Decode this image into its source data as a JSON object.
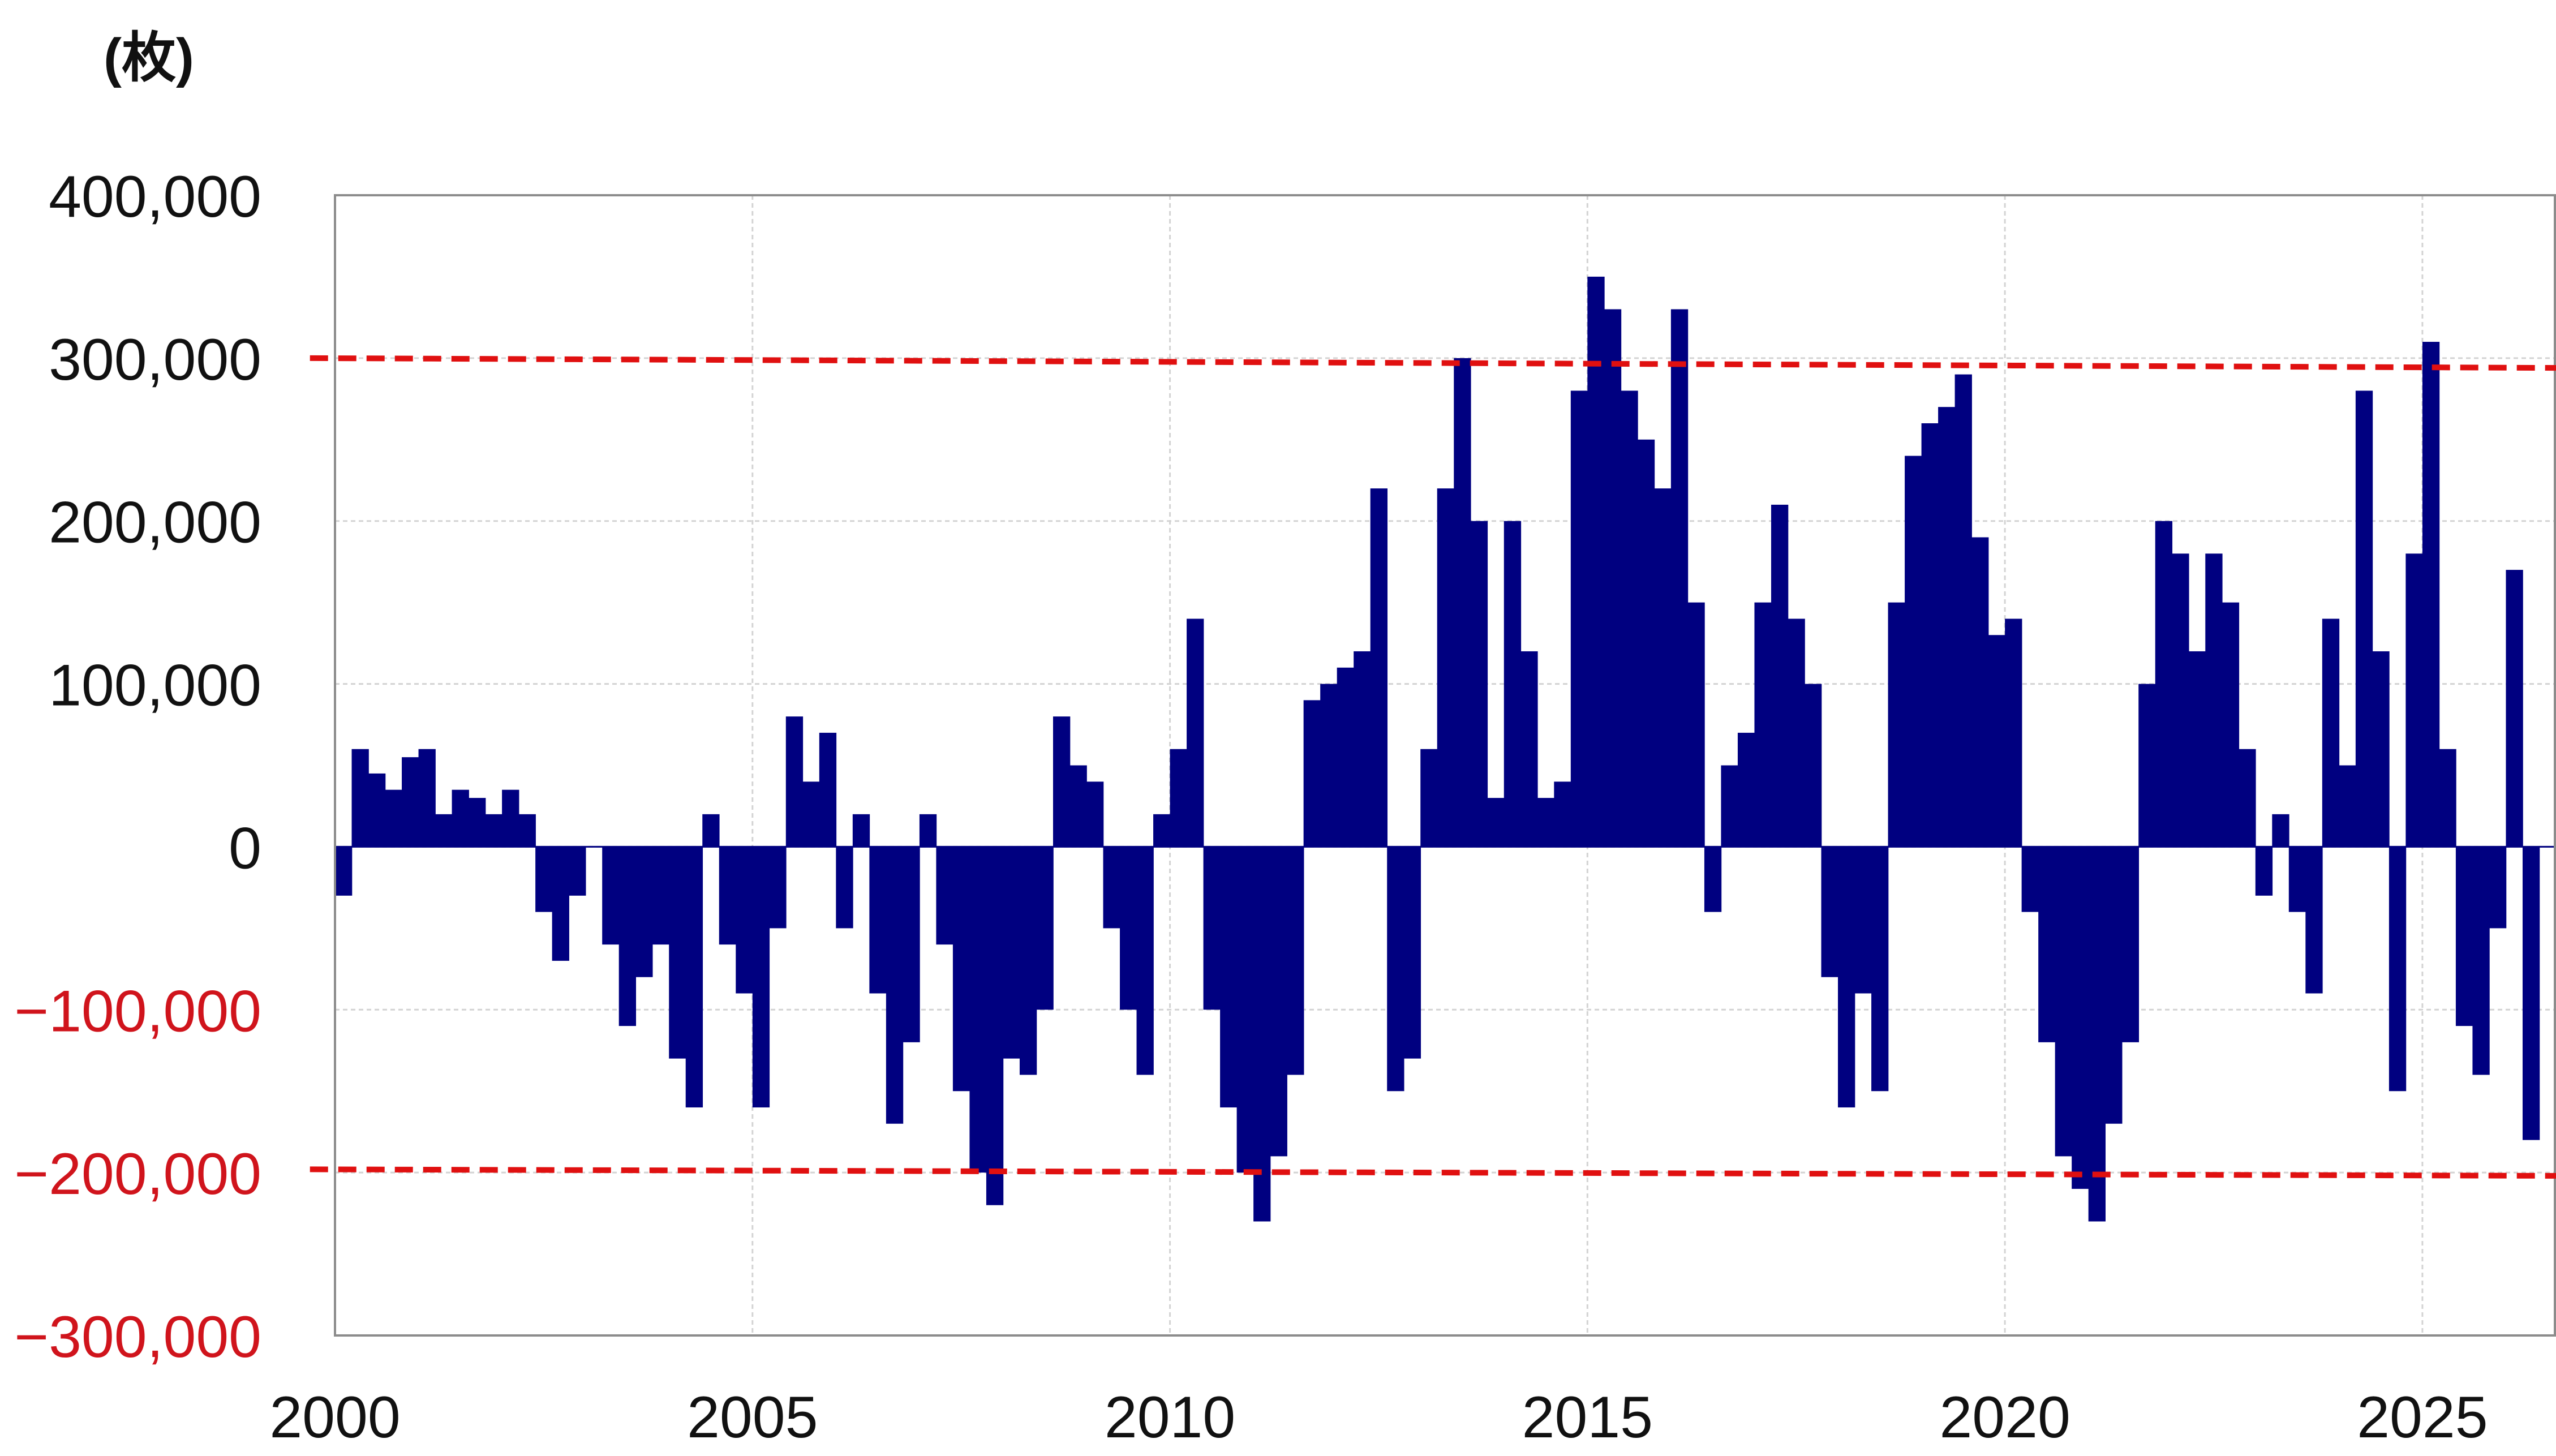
{
  "chart_data": {
    "type": "bar",
    "unit_label": "(枚)",
    "x_axis": {
      "range": [
        2000,
        2026.6
      ],
      "ticks": [
        "2000",
        "2005",
        "2010",
        "2015",
        "2020",
        "2025"
      ]
    },
    "y_axis": {
      "range": [
        -300000,
        400000
      ],
      "ticks": [
        {
          "value": 400000,
          "label": "400,000"
        },
        {
          "value": 300000,
          "label": "300,000"
        },
        {
          "value": 200000,
          "label": "200,000"
        },
        {
          "value": 100000,
          "label": "100,000"
        },
        {
          "value": 0,
          "label": "0"
        },
        {
          "value": -100000,
          "label": "−100,000"
        },
        {
          "value": -200000,
          "label": "−200,000"
        },
        {
          "value": -300000,
          "label": "−300,000"
        }
      ]
    },
    "grid": true,
    "bar_color": "#000080",
    "reference_line_color": "#e01010",
    "reference_lines": [
      {
        "x": [
          1999.7,
          2026.6
        ],
        "y": [
          300000,
          294000
        ]
      },
      {
        "x": [
          1999.7,
          2026.6
        ],
        "y": [
          -198000,
          -202000
        ]
      }
    ],
    "series": [
      {
        "x": [
          2000.0,
          2000.2,
          2000.4,
          2000.6,
          2000.8,
          2001.0,
          2001.2,
          2001.4,
          2001.6,
          2001.8,
          2002.0,
          2002.2,
          2002.4,
          2002.6,
          2002.8,
          2003.0,
          2003.2,
          2003.4,
          2003.6,
          2003.8,
          2004.0,
          2004.2,
          2004.4,
          2004.6,
          2004.8,
          2005.0,
          2005.2,
          2005.4,
          2005.6,
          2005.8,
          2006.0,
          2006.2,
          2006.4,
          2006.6,
          2006.8,
          2007.0,
          2007.2,
          2007.4,
          2007.6,
          2007.8,
          2008.0,
          2008.2,
          2008.4,
          2008.6,
          2008.8,
          2009.0,
          2009.2,
          2009.4,
          2009.6,
          2009.8,
          2010.0,
          2010.2,
          2010.4,
          2010.6,
          2010.8,
          2011.0,
          2011.2,
          2011.4,
          2011.6,
          2011.8,
          2012.0,
          2012.2,
          2012.4,
          2012.6,
          2012.8,
          2013.0,
          2013.2,
          2013.4,
          2013.6,
          2013.8,
          2014.0,
          2014.2,
          2014.4,
          2014.6,
          2014.8,
          2015.0,
          2015.2,
          2015.4,
          2015.6,
          2015.8,
          2016.0,
          2016.2,
          2016.4,
          2016.6,
          2016.8,
          2017.0,
          2017.2,
          2017.4,
          2017.6,
          2017.8,
          2018.0,
          2018.2,
          2018.4,
          2018.6,
          2018.8,
          2019.0,
          2019.2,
          2019.4,
          2019.6,
          2019.8,
          2020.0,
          2020.2,
          2020.4,
          2020.6,
          2020.8,
          2021.0,
          2021.2,
          2021.4,
          2021.6,
          2021.8,
          2022.0,
          2022.2,
          2022.4,
          2022.6,
          2022.8,
          2023.0,
          2023.2,
          2023.4,
          2023.6,
          2023.8,
          2024.0,
          2024.2,
          2024.4,
          2024.6,
          2024.8,
          2025.0,
          2025.2,
          2025.4,
          2025.6,
          2025.8,
          2026.0,
          2026.2
        ],
        "values": [
          -30000,
          60000,
          45000,
          35000,
          55000,
          60000,
          20000,
          35000,
          30000,
          20000,
          35000,
          20000,
          -40000,
          -70000,
          -30000,
          0,
          -60000,
          -110000,
          -80000,
          -60000,
          -130000,
          -160000,
          20000,
          -60000,
          -90000,
          -160000,
          -50000,
          80000,
          40000,
          70000,
          -50000,
          20000,
          -90000,
          -170000,
          -120000,
          20000,
          -60000,
          -150000,
          -200000,
          -220000,
          -130000,
          -140000,
          -100000,
          80000,
          50000,
          40000,
          -50000,
          -100000,
          -140000,
          20000,
          60000,
          140000,
          -100000,
          -160000,
          -200000,
          -230000,
          -190000,
          -140000,
          90000,
          100000,
          110000,
          120000,
          220000,
          -150000,
          -130000,
          60000,
          220000,
          300000,
          200000,
          30000,
          200000,
          120000,
          30000,
          40000,
          280000,
          350000,
          330000,
          280000,
          250000,
          220000,
          330000,
          150000,
          -40000,
          50000,
          70000,
          150000,
          210000,
          140000,
          100000,
          -80000,
          -160000,
          -90000,
          -150000,
          150000,
          240000,
          260000,
          270000,
          290000,
          190000,
          130000,
          140000,
          -40000,
          -120000,
          -190000,
          -210000,
          -230000,
          -170000,
          -120000,
          100000,
          200000,
          180000,
          120000,
          180000,
          150000,
          60000,
          -30000,
          20000,
          -40000,
          -90000,
          140000,
          50000,
          280000,
          120000,
          -150000,
          180000,
          310000,
          60000,
          -110000,
          -140000,
          -50000,
          170000,
          -180000
        ]
      }
    ]
  }
}
